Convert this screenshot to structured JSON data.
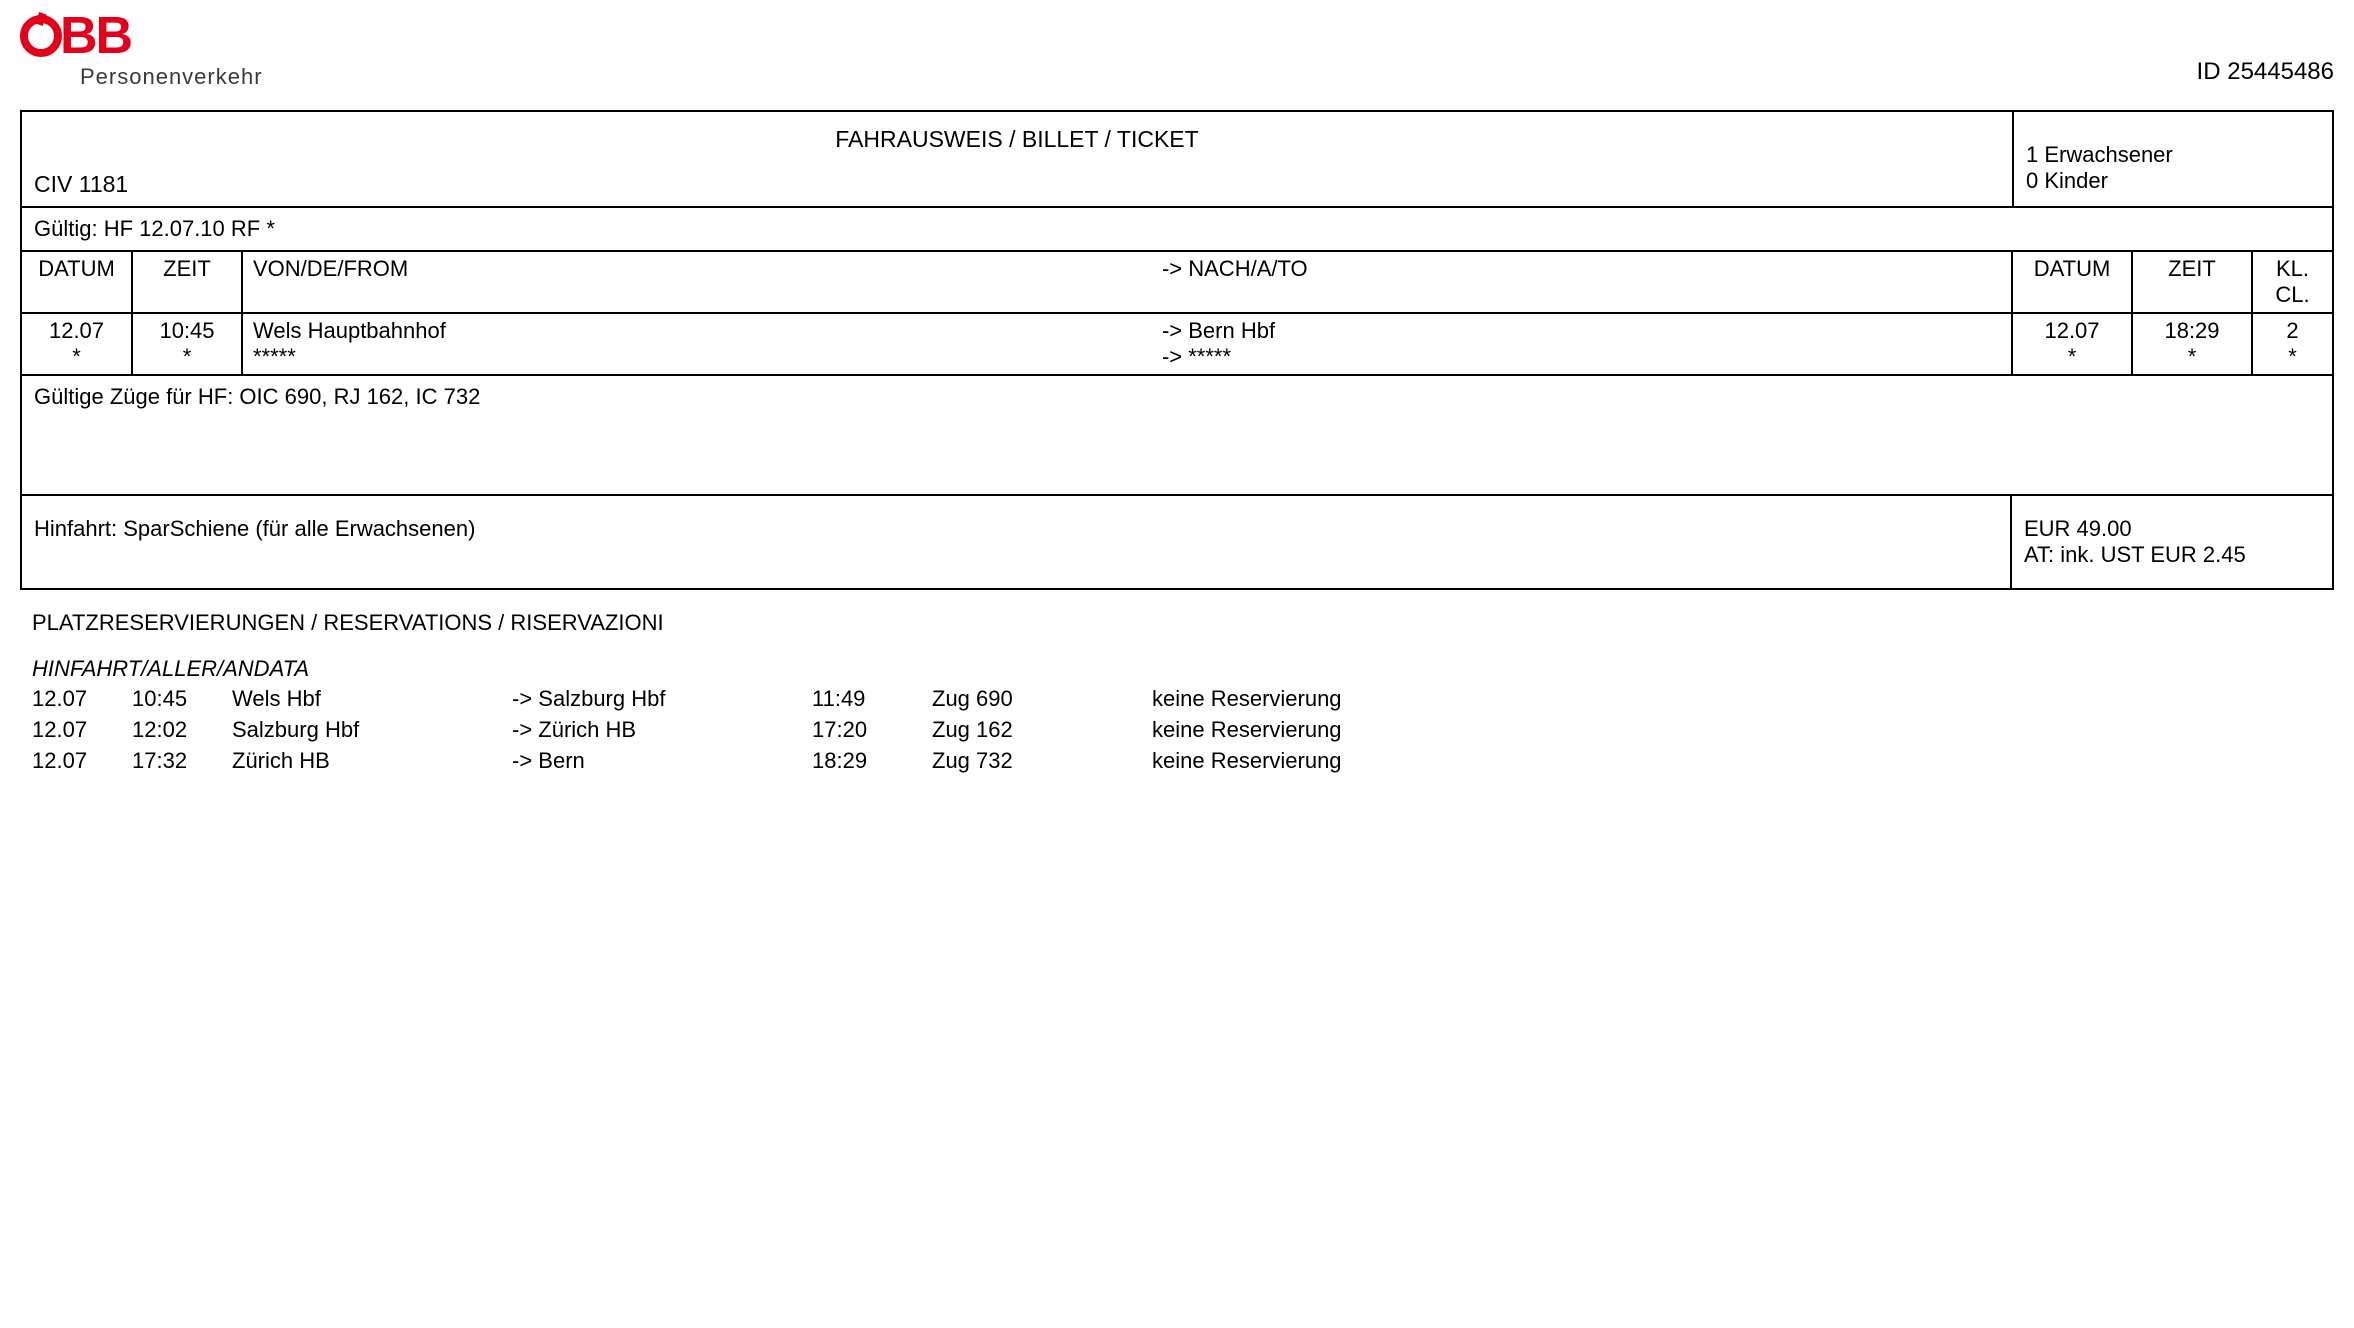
{
  "logo": {
    "brand": "BB",
    "subtitle": "Personenverkehr",
    "brand_color": "#e2001a"
  },
  "ticket_id_label": "ID 25445486",
  "title": "FAHRAUSWEIS / BILLET / TICKET",
  "civ": "CIV 1181",
  "passengers": {
    "adults": "1 Erwachsener",
    "children": "0 Kinder"
  },
  "validity": "Gültig: HF 12.07.10 RF *",
  "journey_header": {
    "date1": "DATUM",
    "time1": "ZEIT",
    "from": "VON/DE/FROM",
    "to": "-> NACH/A/TO",
    "date2": "DATUM",
    "time2": "ZEIT",
    "class": "KL.\nCL."
  },
  "journey": {
    "date1_line1": "12.07",
    "date1_line2": "*",
    "time1_line1": "10:45",
    "time1_line2": "*",
    "from_line1": "Wels Hauptbahnhof",
    "from_line2": "*****",
    "to_line1": "-> Bern Hbf",
    "to_line2": "-> *****",
    "date2_line1": "12.07",
    "date2_line2": "*",
    "time2_line1": "18:29",
    "time2_line2": "*",
    "class_line1": "2",
    "class_line2": "*"
  },
  "valid_trains": "Gültige Züge für HF: OIC 690, RJ  162, IC  732",
  "fare": {
    "description": "Hinfahrt: SparSchiene (für alle Erwachsenen)",
    "price": "EUR 49.00",
    "tax": "AT: ink. UST EUR 2.45"
  },
  "reservations": {
    "title": "PLATZRESERVIERUNGEN / RESERVATIONS / RISERVAZIONI",
    "subtitle": "HINFAHRT/ALLER/ANDATA",
    "legs": [
      {
        "date": "12.07",
        "dep": "10:45",
        "from": "Wels Hbf",
        "to": "-> Salzburg Hbf",
        "arr": "11:49",
        "train": "Zug 690",
        "status": "keine Reservierung"
      },
      {
        "date": "12.07",
        "dep": "12:02",
        "from": "Salzburg Hbf",
        "to": "-> Zürich HB",
        "arr": "17:20",
        "train": "Zug 162",
        "status": "keine Reservierung"
      },
      {
        "date": "12.07",
        "dep": "17:32",
        "from": "Zürich HB",
        "to": "-> Bern",
        "arr": "18:29",
        "train": "Zug 732",
        "status": "keine Reservierung"
      }
    ]
  }
}
